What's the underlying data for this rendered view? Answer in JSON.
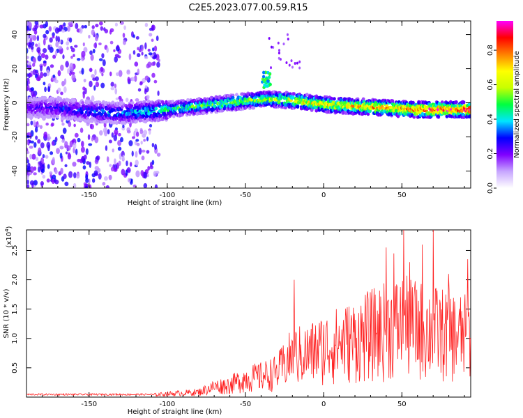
{
  "title": "C2E5.2023.077.00.59.R15",
  "chart_data": [
    {
      "type": "heatmap",
      "xlabel": "Height of straight line (km)",
      "ylabel": "Frequency (Hz)",
      "xlim": [
        -190,
        94
      ],
      "ylim": [
        -50,
        48
      ],
      "x_ticks": [
        -150,
        -100,
        -50,
        0,
        50
      ],
      "x_tick_labels": [
        "-150",
        "-100",
        "-50",
        "0",
        "50"
      ],
      "y_ticks": [
        -40,
        -20,
        0,
        20,
        40
      ],
      "y_tick_labels": [
        "-40",
        "-20",
        "0",
        "20",
        "40"
      ],
      "colorbar": {
        "label": "Normalized spectral amplitude",
        "range": [
          0,
          0.97
        ],
        "ticks": [
          0.0,
          0.2,
          0.4,
          0.6,
          0.8
        ],
        "tick_labels": [
          "0.0",
          "0.2",
          "0.4",
          "0.6",
          "0.8"
        ],
        "colors": [
          "#ffffff",
          "#c7a6ff",
          "#8000ff",
          "#0000ff",
          "#00e5ff",
          "#00ff40",
          "#c8ff00",
          "#ffff00",
          "#ff8000",
          "#ff0000",
          "#ff00ff"
        ]
      },
      "ridge": [
        {
          "x": -185,
          "y": -3
        },
        {
          "x": -170,
          "y": -3
        },
        {
          "x": -150,
          "y": -5
        },
        {
          "x": -130,
          "y": -6
        },
        {
          "x": -110,
          "y": -5
        },
        {
          "x": -90,
          "y": -3
        },
        {
          "x": -70,
          "y": -1
        },
        {
          "x": -50,
          "y": 1
        },
        {
          "x": -40,
          "y": 2
        },
        {
          "x": -30,
          "y": 2
        },
        {
          "x": -15,
          "y": 1
        },
        {
          "x": 0,
          "y": -1
        },
        {
          "x": 20,
          "y": -2
        },
        {
          "x": 40,
          "y": -3
        },
        {
          "x": 60,
          "y": -4
        },
        {
          "x": 80,
          "y": -4
        },
        {
          "x": 94,
          "y": -4
        }
      ],
      "grid": false
    },
    {
      "type": "line",
      "xlabel": "Height of straight line (km)",
      "ylabel": "SNR (10 * v/v)",
      "y_exponent_label": "(x10",
      "y_exponent_power": "4",
      "y_exponent_close": ")",
      "xlim": [
        -190,
        94
      ],
      "ylim": [
        0,
        2.85
      ],
      "x_ticks": [
        -150,
        -100,
        -50,
        0,
        50
      ],
      "x_tick_labels": [
        "-150",
        "-100",
        "-50",
        "0",
        "50"
      ],
      "y_ticks": [
        0.5,
        1.0,
        1.5,
        2.0,
        2.5
      ],
      "y_tick_labels": [
        "0.5",
        "1.0",
        "1.5",
        "2.0",
        "2.5"
      ],
      "color": "#ff2020",
      "envelope": [
        {
          "x": -190,
          "y": 0.05
        },
        {
          "x": -110,
          "y": 0.05
        },
        {
          "x": -100,
          "y": 0.08
        },
        {
          "x": -80,
          "y": 0.12
        },
        {
          "x": -70,
          "y": 0.25
        },
        {
          "x": -60,
          "y": 0.3
        },
        {
          "x": -50,
          "y": 0.45
        },
        {
          "x": -40,
          "y": 0.5
        },
        {
          "x": -30,
          "y": 0.6
        },
        {
          "x": -25,
          "y": 0.8
        },
        {
          "x": -20,
          "y": 1.0
        },
        {
          "x": -10,
          "y": 1.05
        },
        {
          "x": 0,
          "y": 1.2
        },
        {
          "x": 20,
          "y": 1.4
        },
        {
          "x": 35,
          "y": 1.6
        },
        {
          "x": 50,
          "y": 1.75
        },
        {
          "x": 70,
          "y": 1.6
        },
        {
          "x": 85,
          "y": 1.5
        },
        {
          "x": 94,
          "y": 1.45
        }
      ],
      "peaks": [
        {
          "x": -19,
          "y": 2.0
        },
        {
          "x": 40,
          "y": 2.55
        },
        {
          "x": 45,
          "y": 2.45
        },
        {
          "x": 51,
          "y": 2.85
        },
        {
          "x": 55,
          "y": 2.3
        },
        {
          "x": 63,
          "y": 2.6
        },
        {
          "x": 70,
          "y": 2.85
        },
        {
          "x": 80,
          "y": 2.1
        },
        {
          "x": 92,
          "y": 2.35
        }
      ],
      "grid": false
    }
  ]
}
